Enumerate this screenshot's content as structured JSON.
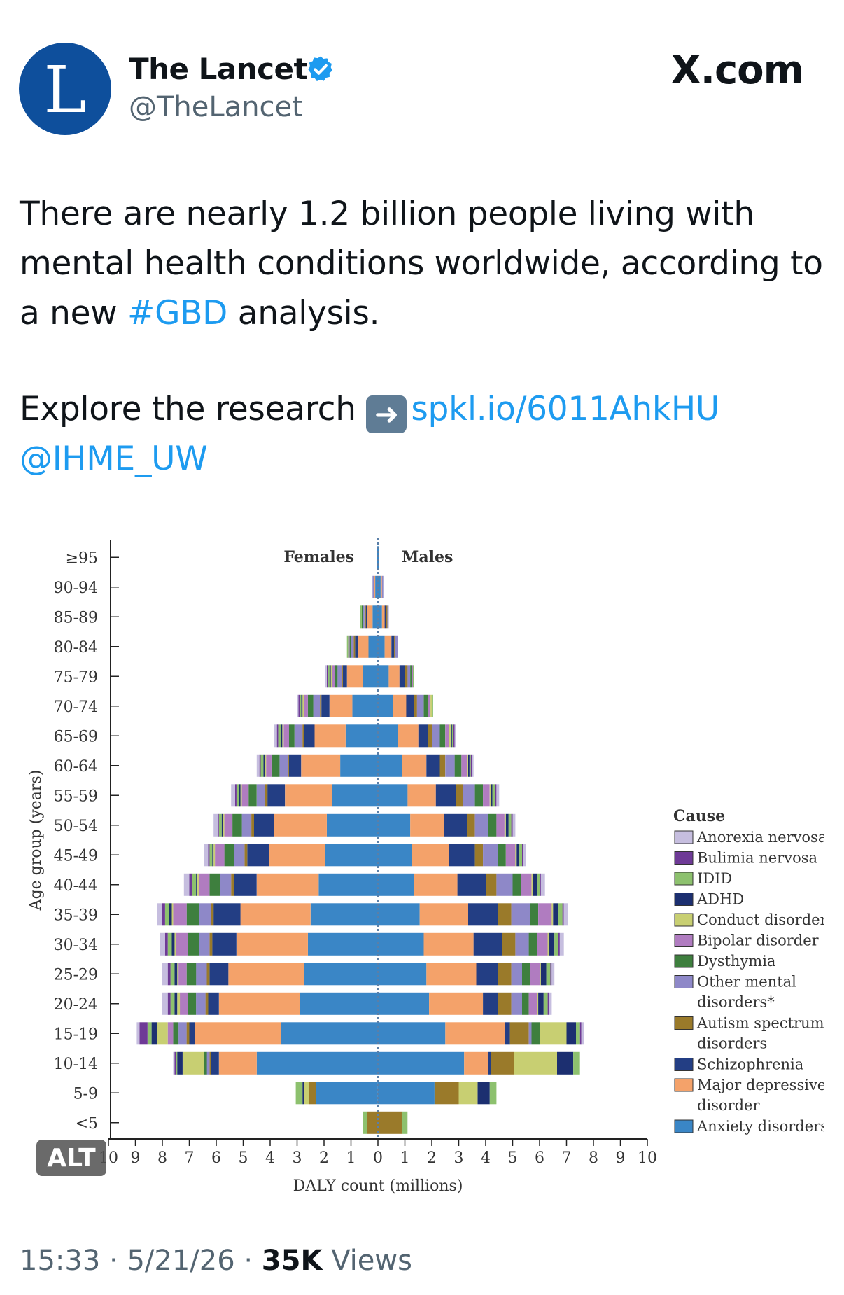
{
  "author": {
    "avatar_letter": "L",
    "display_name": "The Lancet",
    "handle": "@TheLancet",
    "verified": true
  },
  "site": "X.com",
  "tweet": {
    "text_part1": "There are nearly 1.2 billion people living with mental health conditions worldwide, according to a new ",
    "hashtag": "#GBD",
    "text_part2": " analysis.",
    "explore_text": "Explore the research ",
    "link": "spkl.io/6011AhkHU",
    "mention": "@IHME_UW"
  },
  "alt_badge": "ALT",
  "footer": {
    "time": "15:33",
    "date": "5/21/26",
    "views_count": "35K",
    "views_label": "Views"
  },
  "chart_data": {
    "type": "bar",
    "orientation": "horizontal-population-pyramid",
    "xlabel": "DALY count (millions)",
    "ylabel": "Age group (years)",
    "side_labels": [
      "Females",
      "Males"
    ],
    "xlim": [
      -10,
      10
    ],
    "x_ticks": [
      10,
      9,
      8,
      7,
      6,
      5,
      4,
      3,
      2,
      1,
      0,
      1,
      2,
      3,
      4,
      5,
      6,
      7,
      8,
      9,
      10
    ],
    "legend_title": "Cause",
    "legend_position": "right",
    "legend": [
      "Anorexia nervosa",
      "Bulimia nervosa",
      "IDID",
      "ADHD",
      "Conduct disorder",
      "Bipolar disorder",
      "Dysthymia",
      "Other mental disorders*",
      "Autism spectrum disorders",
      "Schizophrenia",
      "Major depressive disorder",
      "Anxiety disorders"
    ],
    "causes": [
      "Anxiety disorders",
      "Major depressive disorder",
      "Schizophrenia",
      "Autism spectrum disorders",
      "Other mental disorders*",
      "Dysthymia",
      "Bipolar disorder",
      "Conduct disorder",
      "ADHD",
      "IDID",
      "Bulimia nervosa",
      "Anorexia nervosa"
    ],
    "colors": {
      "Anxiety disorders": "#3a86c6",
      "Major depressive disorder": "#f4a26a",
      "Schizophrenia": "#233e84",
      "Autism spectrum disorders": "#9a7a2a",
      "Other mental disorders*": "#8e88c8",
      "Dysthymia": "#3e7f3e",
      "Bipolar disorder": "#b07cc0",
      "Conduct disorder": "#c8cf72",
      "ADHD": "#1c2f70",
      "IDID": "#8dc16e",
      "Bulimia nervosa": "#6e3a96",
      "Anorexia nervosa": "#c6bedf"
    },
    "categories": [
      "<5",
      "5-9",
      "10-14",
      "15-19",
      "20-24",
      "25-29",
      "30-34",
      "35-39",
      "40-44",
      "45-49",
      "50-54",
      "55-59",
      "60-64",
      "65-69",
      "70-74",
      "75-79",
      "80-84",
      "85-89",
      "90-94",
      "≥95"
    ],
    "females": [
      [
        0,
        0,
        0,
        0.4,
        0,
        0,
        0,
        0,
        0,
        0.15,
        0,
        0
      ],
      [
        2.3,
        0,
        0,
        0.25,
        0,
        0,
        0,
        0.2,
        0.05,
        0.25,
        0,
        0
      ],
      [
        4.5,
        1.4,
        0.3,
        0.05,
        0.1,
        0.1,
        0,
        0.8,
        0.2,
        0.05,
        0.05,
        0.05
      ],
      [
        3.6,
        3.2,
        0.2,
        0.1,
        0.3,
        0.2,
        0.2,
        0.4,
        0.2,
        0.15,
        0.3,
        0.1
      ],
      [
        2.9,
        3.0,
        0.4,
        0.1,
        0.35,
        0.3,
        0.3,
        0.1,
        0.1,
        0.15,
        0.1,
        0.2
      ],
      [
        2.75,
        2.8,
        0.7,
        0.1,
        0.4,
        0.35,
        0.3,
        0.05,
        0.1,
        0.15,
        0.1,
        0.2
      ],
      [
        2.6,
        2.65,
        0.9,
        0.1,
        0.4,
        0.4,
        0.45,
        0.05,
        0.1,
        0.15,
        0.1,
        0.2
      ],
      [
        2.5,
        2.6,
        1.0,
        0.1,
        0.45,
        0.45,
        0.5,
        0.05,
        0.1,
        0.15,
        0.1,
        0.2
      ],
      [
        2.2,
        2.3,
        0.85,
        0.1,
        0.4,
        0.4,
        0.4,
        0.05,
        0.05,
        0.15,
        0.1,
        0.2
      ],
      [
        1.95,
        2.1,
        0.8,
        0.1,
        0.4,
        0.35,
        0.35,
        0.05,
        0.05,
        0.1,
        0.05,
        0.15
      ],
      [
        1.9,
        1.95,
        0.75,
        0.1,
        0.35,
        0.35,
        0.3,
        0.05,
        0.05,
        0.1,
        0.05,
        0.15
      ],
      [
        1.7,
        1.75,
        0.65,
        0.1,
        0.3,
        0.3,
        0.25,
        0.05,
        0.05,
        0.1,
        0.05,
        0.15
      ],
      [
        1.4,
        1.45,
        0.45,
        0.05,
        0.3,
        0.3,
        0.2,
        0.05,
        0.05,
        0.1,
        0.05,
        0.1
      ],
      [
        1.2,
        1.15,
        0.4,
        0.05,
        0.3,
        0.2,
        0.2,
        0.05,
        0.05,
        0.1,
        0.05,
        0.1
      ],
      [
        0.95,
        0.85,
        0.3,
        0.05,
        0.25,
        0.2,
        0.15,
        0.05,
        0.05,
        0.05,
        0.05,
        0.05
      ],
      [
        0.55,
        0.6,
        0.15,
        0.05,
        0.15,
        0.1,
        0.1,
        0.05,
        0.05,
        0.05,
        0.05,
        0.05
      ],
      [
        0.35,
        0.4,
        0.1,
        0.05,
        0.1,
        0.05,
        0.05,
        0,
        0,
        0.05,
        0,
        0
      ],
      [
        0.2,
        0.2,
        0.05,
        0.05,
        0.05,
        0.05,
        0,
        0,
        0,
        0.05,
        0,
        0
      ],
      [
        0.1,
        0.05,
        0,
        0,
        0.05,
        0,
        0,
        0,
        0,
        0,
        0,
        0
      ],
      [
        0.05,
        0,
        0,
        0,
        0,
        0,
        0,
        0,
        0,
        0,
        0,
        0
      ]
    ],
    "males": [
      [
        0,
        0,
        0,
        0.9,
        0,
        0,
        0,
        0,
        0,
        0.2,
        0,
        0
      ],
      [
        2.1,
        0,
        0,
        0.9,
        0,
        0,
        0,
        0.7,
        0.45,
        0.25,
        0,
        0
      ],
      [
        3.2,
        0.9,
        0.1,
        0.85,
        0,
        0,
        0,
        1.6,
        0.6,
        0.25,
        0,
        0
      ],
      [
        2.5,
        2.2,
        0.2,
        0.7,
        0.1,
        0.3,
        0,
        1.0,
        0.35,
        0.15,
        0.05,
        0.1
      ],
      [
        1.9,
        2.0,
        0.55,
        0.5,
        0.4,
        0.25,
        0.3,
        0.05,
        0.2,
        0.15,
        0.05,
        0.1
      ],
      [
        1.8,
        1.85,
        0.8,
        0.5,
        0.4,
        0.3,
        0.35,
        0.05,
        0.2,
        0.15,
        0.05,
        0.1
      ],
      [
        1.7,
        1.85,
        1.05,
        0.5,
        0.5,
        0.3,
        0.4,
        0.05,
        0.2,
        0.15,
        0.05,
        0.15
      ],
      [
        1.55,
        1.8,
        1.1,
        0.5,
        0.7,
        0.3,
        0.5,
        0.05,
        0.2,
        0.15,
        0.05,
        0.15
      ],
      [
        1.35,
        1.6,
        1.05,
        0.4,
        0.6,
        0.3,
        0.4,
        0.05,
        0.15,
        0.1,
        0.05,
        0.15
      ],
      [
        1.25,
        1.4,
        0.95,
        0.3,
        0.55,
        0.3,
        0.35,
        0.05,
        0.1,
        0.1,
        0.05,
        0.1
      ],
      [
        1.2,
        1.25,
        0.85,
        0.3,
        0.5,
        0.3,
        0.3,
        0.05,
        0.1,
        0.1,
        0.05,
        0.1
      ],
      [
        1.1,
        1.05,
        0.75,
        0.25,
        0.45,
        0.3,
        0.25,
        0.05,
        0.05,
        0.1,
        0.05,
        0.1
      ],
      [
        0.9,
        0.9,
        0.5,
        0.2,
        0.35,
        0.25,
        0.2,
        0.05,
        0.05,
        0.05,
        0.05,
        0.05
      ],
      [
        0.75,
        0.75,
        0.35,
        0.15,
        0.3,
        0.2,
        0.15,
        0.05,
        0.05,
        0.05,
        0.05,
        0.05
      ],
      [
        0.55,
        0.5,
        0.3,
        0.1,
        0.25,
        0.15,
        0.1,
        0.05,
        0,
        0.05,
        0,
        0
      ],
      [
        0.4,
        0.4,
        0.2,
        0.1,
        0.1,
        0.05,
        0.05,
        0,
        0,
        0.05,
        0,
        0
      ],
      [
        0.25,
        0.25,
        0.1,
        0.05,
        0.1,
        0,
        0,
        0,
        0,
        0,
        0,
        0
      ],
      [
        0.15,
        0.1,
        0.05,
        0.05,
        0.05,
        0,
        0,
        0,
        0,
        0,
        0,
        0
      ],
      [
        0.1,
        0.05,
        0,
        0,
        0.05,
        0,
        0,
        0,
        0,
        0,
        0,
        0
      ],
      [
        0.05,
        0,
        0,
        0,
        0,
        0,
        0,
        0,
        0,
        0,
        0,
        0
      ]
    ]
  }
}
